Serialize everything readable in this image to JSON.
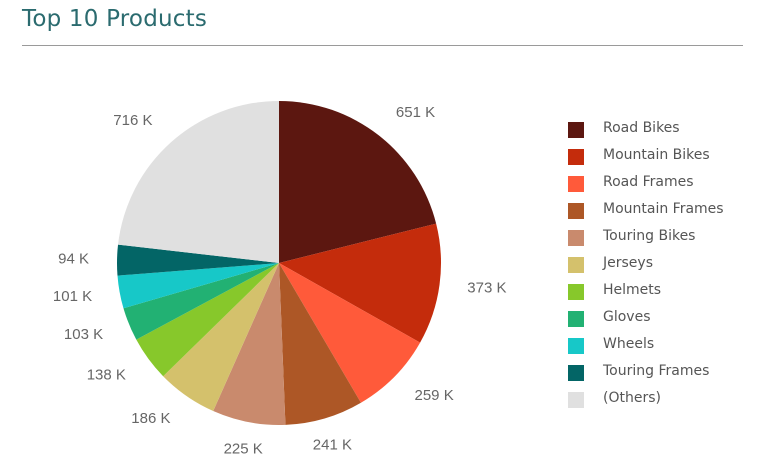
{
  "header": {
    "title": "Top 10 Products"
  },
  "chart_data": {
    "type": "pie",
    "title": "Top 10 Products",
    "slices": [
      {
        "name": "Road Bikes",
        "value": 651,
        "label": "651 K",
        "color": "#5c1710"
      },
      {
        "name": "Mountain Bikes",
        "value": 373,
        "label": "373 K",
        "color": "#c42c0c"
      },
      {
        "name": "Road Frames",
        "value": 259,
        "label": "259 K",
        "color": "#ff5a3a"
      },
      {
        "name": "Mountain Frames",
        "value": 241,
        "label": "241 K",
        "color": "#ad5726"
      },
      {
        "name": "Touring Bikes",
        "value": 225,
        "label": "225 K",
        "color": "#c98a6d"
      },
      {
        "name": "Jerseys",
        "value": 186,
        "label": "186 K",
        "color": "#d4c16c"
      },
      {
        "name": "Helmets",
        "value": 138,
        "label": "138 K",
        "color": "#87c82b"
      },
      {
        "name": "Gloves",
        "value": 103,
        "label": "103 K",
        "color": "#22b173"
      },
      {
        "name": "Wheels",
        "value": 101,
        "label": "101 K",
        "color": "#17c8c8"
      },
      {
        "name": "Touring Frames",
        "value": 94,
        "label": "94 K",
        "color": "#036566"
      },
      {
        "name": "(Others)",
        "value": 716,
        "label": "716 K",
        "color": "#e0e0e0"
      }
    ],
    "start_angle": "12 o'clock",
    "direction": "clockwise",
    "legend_position": "right"
  }
}
